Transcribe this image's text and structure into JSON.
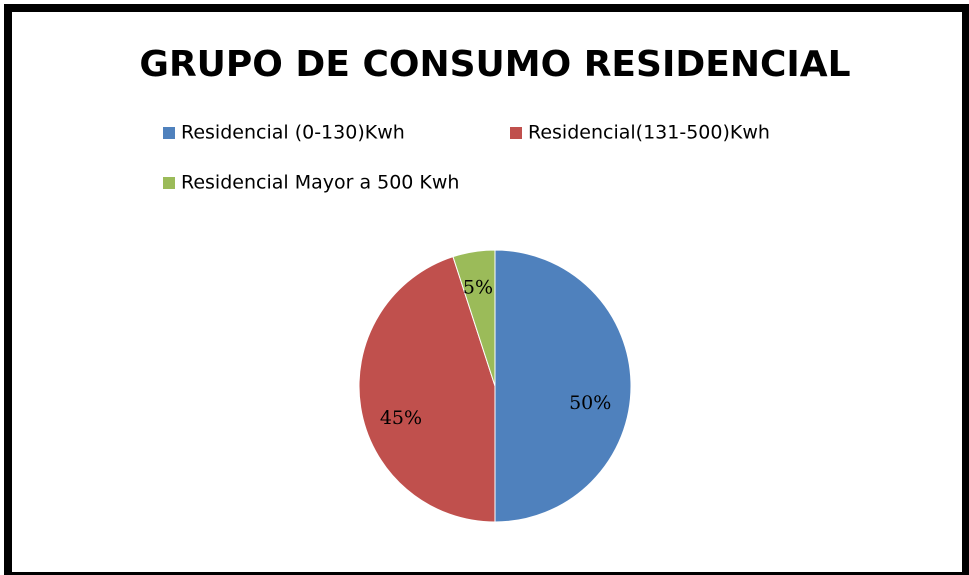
{
  "chart_data": {
    "type": "pie",
    "title": "GRUPO DE CONSUMO RESIDENCIAL",
    "categories": [
      "Residencial (0-130)Kwh",
      "Residencial(131-500)Kwh",
      "Residencial Mayor a 500 Kwh"
    ],
    "values": [
      50,
      45,
      5
    ],
    "value_labels": [
      "50%",
      "45%",
      "5%"
    ],
    "colors": [
      "#4f81bd",
      "#c0504d",
      "#9bbb59"
    ],
    "legend": "top"
  }
}
